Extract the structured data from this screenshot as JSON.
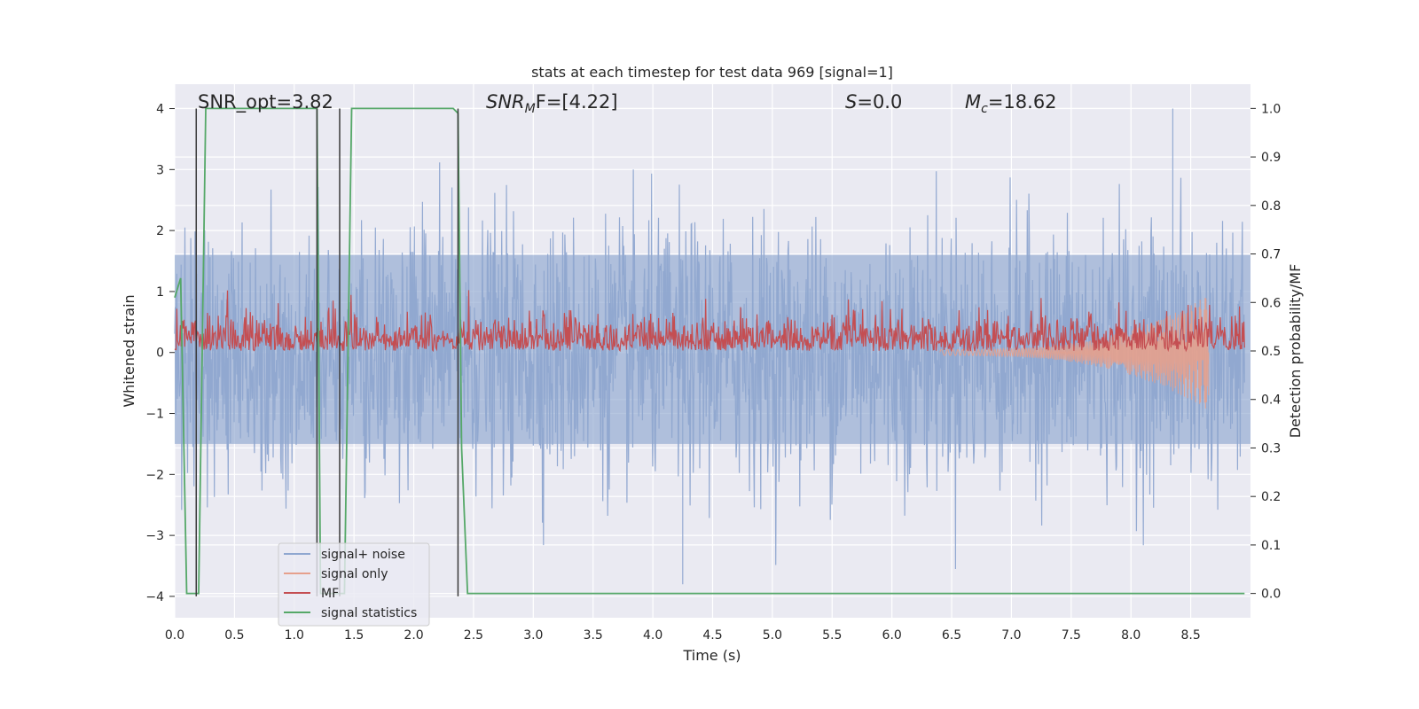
{
  "chart_data": {
    "type": "line",
    "title": "stats at each timestep for test data 969 [signal=1]",
    "xlabel": "Time (s)",
    "ylabel": "Whitened strain",
    "y2label": "Detection probability/MF",
    "xlim": [
      0.0,
      9.0
    ],
    "ylim": [
      -4.35,
      4.4
    ],
    "y2lim": [
      -0.05,
      1.05
    ],
    "xticks": [
      0.0,
      0.5,
      1.0,
      1.5,
      2.0,
      2.5,
      3.0,
      3.5,
      4.0,
      4.5,
      5.0,
      5.5,
      6.0,
      6.5,
      7.0,
      7.5,
      8.0,
      8.5
    ],
    "xtick_labels": [
      "0.0",
      "0.5",
      "1.0",
      "1.5",
      "2.0",
      "2.5",
      "3.0",
      "3.5",
      "4.0",
      "4.5",
      "5.0",
      "5.5",
      "6.0",
      "6.5",
      "7.0",
      "7.5",
      "8.0",
      "8.5"
    ],
    "yticks": [
      4,
      3,
      2,
      1,
      0,
      -1,
      -2,
      -3,
      -4
    ],
    "ytick_labels": [
      "4",
      "3",
      "2",
      "1",
      "0",
      "−1",
      "−2",
      "−3",
      "−4"
    ],
    "y2ticks": [
      1.0,
      0.9,
      0.8,
      0.7,
      0.6,
      0.5,
      0.4,
      0.3,
      0.2,
      0.1,
      0.0
    ],
    "y2tick_labels": [
      "1.0",
      "0.9",
      "0.8",
      "0.7",
      "0.6",
      "0.5",
      "0.4",
      "0.3",
      "0.2",
      "0.1",
      "0.0"
    ],
    "grid": true,
    "legend_position": "lower-left",
    "annotations": {
      "snr_opt": "SNR_opt=3.82",
      "snr_mf_base": "SNR",
      "snr_mf_sub": "M",
      "snr_mf_rest": "F=[4.22]",
      "s_main": "S",
      "s_rest": "=0.0",
      "mc_base": "M",
      "mc_sub": "c",
      "mc_rest": "=18.62"
    },
    "series": [
      {
        "name": "signal+ noise",
        "color": "#8fa7d0",
        "description_range": [
          -3.8,
          4.0
        ],
        "envelope_y": [
          -1.5,
          1.6
        ],
        "max_peak": {
          "x": 8.35,
          "y": 4.0
        },
        "min_peak": {
          "x": 4.25,
          "y": -3.8
        }
      },
      {
        "name": "signal only",
        "color": "#e6a08c",
        "start_x": 6.4,
        "end_x": 8.65,
        "peak_amplitude": 0.9,
        "end_min": -0.7
      },
      {
        "name": "MF",
        "color": "#c44e52",
        "axis": "y2",
        "band": [
          0.5,
          0.6
        ],
        "max": 0.63
      },
      {
        "name": "signal statistics",
        "color": "#55a868",
        "axis": "y2",
        "x": [
          0.0,
          0.05,
          0.1,
          0.18,
          0.2,
          0.26,
          0.3,
          0.5,
          1.0,
          1.19,
          1.22,
          1.25,
          1.3,
          1.38,
          1.42,
          1.48,
          1.5,
          2.0,
          2.33,
          2.37,
          2.4,
          2.45,
          8.95
        ],
        "y": [
          0.61,
          0.65,
          0.0,
          0.0,
          0.0,
          1.0,
          1.0,
          1.0,
          1.0,
          1.0,
          0.0,
          0.0,
          0.0,
          0.0,
          0.0,
          1.0,
          1.0,
          1.0,
          1.0,
          0.99,
          0.3,
          0.0,
          0.0
        ]
      }
    ],
    "vertical_markers": [
      0.18,
      1.19,
      1.38,
      2.37
    ]
  },
  "legend": {
    "items": [
      {
        "label": "signal+ noise",
        "color": "#8fa7d0"
      },
      {
        "label": "signal only",
        "color": "#e6a08c"
      },
      {
        "label": "MF",
        "color": "#c44e52"
      },
      {
        "label": "signal statistics",
        "color": "#55a868"
      }
    ]
  },
  "colors": {
    "plot_background": "#eaeaf2",
    "grid": "#ffffff",
    "marker_line": "#3a3a3a"
  }
}
